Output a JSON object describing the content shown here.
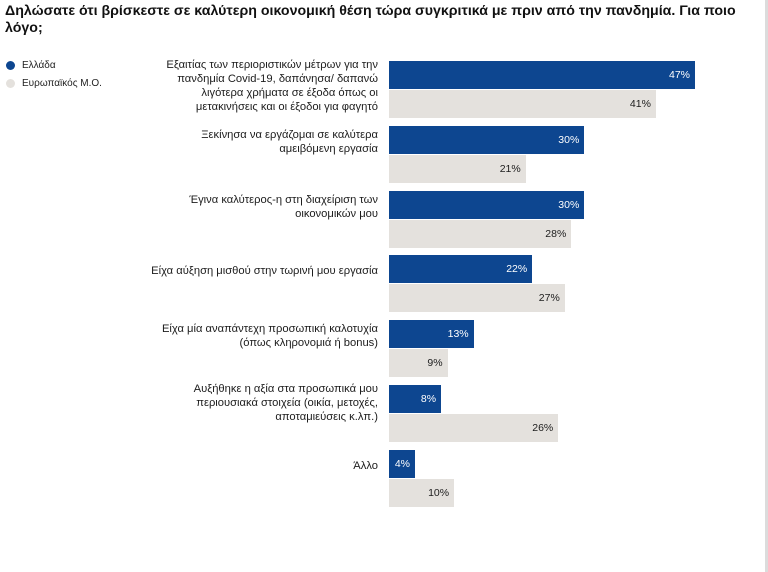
{
  "title": "Δηλώσατε ότι βρίσκεστε σε καλύτερη οικονομική θέση τώρα συγκριτικά με πριν από την πανδημία. Για ποιο\nλόγο;",
  "colors": {
    "greece": "#0d4690",
    "eu_avg": "#e4e1dd"
  },
  "legend": [
    {
      "label": "Ελλάδα",
      "color": "#0d4690"
    },
    {
      "label": "Ευρωπαϊκός Μ.Ο.",
      "color": "#e4e1dd"
    }
  ],
  "chart_data": {
    "type": "bar",
    "orientation": "horizontal",
    "title": "Δηλώσατε ότι βρίσκεστε σε καλύτερη οικονομική θέση τώρα συγκριτικά με πριν από την πανδημία. Για ποιο\nλόγο;",
    "xlabel": "",
    "ylabel": "",
    "xlim": [
      0,
      47
    ],
    "grid": false,
    "legend_position": "top-left",
    "categories": [
      "Εξαιτίας των περιοριστικών μέτρων για την\nπανδημία Covid-19, δαπάνησα/ δαπανώ\nλιγότερα χρήματα σε έξοδα όπως οι\nμετακινήσεις και οι έξοδοι για φαγητό",
      "Ξεκίνησα να εργάζομαι σε καλύτερα\nαμειβόμενη εργασία",
      "Έγινα καλύτερος-η στη διαχείριση των\nοικονομικών μου",
      "Είχα αύξηση μισθού στην τωρινή μου εργασία",
      "Είχα μία αναπάντεχη προσωπική καλοτυχία\n(όπως κληρονομιά ή bonus)",
      "Αυξήθηκε η αξία στα προσωπικά μου\nπεριουσιακά στοιχεία (οικία, μετοχές,\nαποταμιεύσεις κ.λπ.)",
      "Άλλο"
    ],
    "series": [
      {
        "name": "Ελλάδα",
        "color": "#0d4690",
        "values": [
          47,
          30,
          30,
          22,
          13,
          8,
          4
        ],
        "labels": [
          "47%",
          "30%",
          "30%",
          "22%",
          "13%",
          "8%",
          "4%"
        ]
      },
      {
        "name": "Ευρωπαϊκός Μ.Ο.",
        "color": "#e4e1dd",
        "values": [
          41,
          21,
          28,
          27,
          9,
          26,
          10
        ],
        "labels": [
          "41%",
          "21%",
          "28%",
          "27%",
          "9%",
          "26%",
          "10%"
        ]
      }
    ]
  }
}
